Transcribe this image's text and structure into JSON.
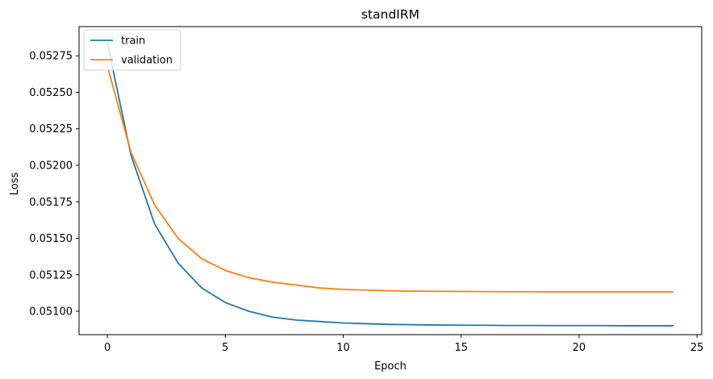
{
  "chart_data": {
    "type": "line",
    "title": "standIRM",
    "xlabel": "Epoch",
    "ylabel": "Loss",
    "xlim": [
      -1.2,
      25.2
    ],
    "ylim": [
      0.05084,
      0.05295
    ],
    "xticks": [
      0,
      5,
      10,
      15,
      20,
      25
    ],
    "xtick_labels": [
      "0",
      "5",
      "10",
      "15",
      "20",
      "25"
    ],
    "yticks": [
      0.051,
      0.05125,
      0.0515,
      0.05175,
      0.052,
      0.05225,
      0.0525,
      0.05275
    ],
    "ytick_labels": [
      "0.05100",
      "0.05125",
      "0.05150",
      "0.05175",
      "0.05200",
      "0.05225",
      "0.05250",
      "0.05275"
    ],
    "grid": false,
    "legend_position": "top-left",
    "x": [
      0,
      1,
      2,
      3,
      4,
      5,
      6,
      7,
      8,
      9,
      10,
      11,
      12,
      13,
      14,
      15,
      16,
      17,
      18,
      19,
      20,
      21,
      22,
      23,
      24
    ],
    "series": [
      {
        "name": "train",
        "color": "#1f77b4",
        "values": [
          0.05284,
          0.05207,
          0.0516,
          0.05133,
          0.05116,
          0.05106,
          0.051,
          0.05096,
          0.05094,
          0.05093,
          0.05092,
          0.050915,
          0.05091,
          0.050908,
          0.050906,
          0.050905,
          0.050904,
          0.050903,
          0.050903,
          0.050902,
          0.050902,
          0.050902,
          0.050901,
          0.050901,
          0.050901
        ]
      },
      {
        "name": "validation",
        "color": "#ff7f0e",
        "values": [
          0.05268,
          0.05209,
          0.05173,
          0.0515,
          0.05136,
          0.05128,
          0.05123,
          0.0512,
          0.05118,
          0.05116,
          0.05115,
          0.051145,
          0.05114,
          0.051138,
          0.051137,
          0.051136,
          0.051135,
          0.051134,
          0.051134,
          0.051133,
          0.051133,
          0.051133,
          0.051133,
          0.051133,
          0.051133
        ]
      }
    ]
  }
}
